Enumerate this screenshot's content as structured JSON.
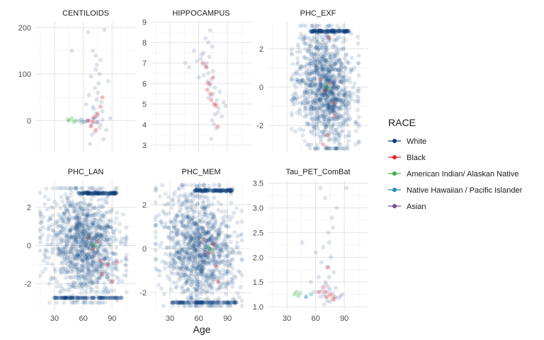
{
  "chart_data": {
    "type": "scatter",
    "xlabel": "Age",
    "x_ticks": [
      30,
      60,
      90
    ],
    "xlim": [
      10,
      115
    ],
    "grid": true,
    "legend_position": "right",
    "legend": {
      "title": "RACE",
      "entries": [
        {
          "name": "White",
          "color": "#0b3b7a"
        },
        {
          "name": "Black",
          "color": "#e3242b"
        },
        {
          "name": "American Indian/ Alaskan Native",
          "color": "#3dae49"
        },
        {
          "name": "Native Hawaiian / Pacific Islander",
          "color": "#1f8eb0"
        },
        {
          "name": "Asian",
          "color": "#7a4a9a"
        }
      ]
    },
    "panels": [
      {
        "title": "CENTILOIDS",
        "ylim": [
          -68,
          212
        ],
        "y_ticks": [
          0,
          100,
          200
        ],
        "y_tick_labels": [
          "0",
          "100",
          "200"
        ],
        "points": [
          [
            70,
            -5,
            0
          ],
          [
            72,
            5,
            0
          ],
          [
            68,
            -10,
            0
          ],
          [
            75,
            10,
            0
          ],
          [
            65,
            0,
            0
          ],
          [
            78,
            -8,
            0
          ],
          [
            80,
            2,
            0
          ],
          [
            62,
            -3,
            0
          ],
          [
            73,
            15,
            0
          ],
          [
            77,
            -15,
            0
          ],
          [
            70,
            30,
            0
          ],
          [
            74,
            45,
            0
          ],
          [
            72,
            70,
            0
          ],
          [
            76,
            80,
            0
          ],
          [
            68,
            95,
            0
          ],
          [
            73,
            110,
            0
          ],
          [
            78,
            130,
            0
          ],
          [
            70,
            150,
            0
          ],
          [
            65,
            190,
            0
          ],
          [
            82,
            195,
            0
          ],
          [
            75,
            60,
            0
          ],
          [
            71,
            25,
            0
          ],
          [
            84,
            -20,
            0
          ],
          [
            58,
            -5,
            0
          ],
          [
            88,
            5,
            0
          ],
          [
            79,
            40,
            0
          ],
          [
            66,
            55,
            0
          ],
          [
            74,
            120,
            0
          ],
          [
            69,
            -30,
            0
          ],
          [
            81,
            -40,
            0
          ],
          [
            55,
            0,
            0
          ],
          [
            48,
            150,
            0
          ],
          [
            67,
            -50,
            0
          ],
          [
            77,
            100,
            0
          ],
          [
            72,
            -25,
            0
          ],
          [
            86,
            85,
            0
          ],
          [
            63,
            35,
            0
          ],
          [
            73,
            140,
            0
          ],
          [
            80,
            20,
            0
          ],
          [
            75,
            -2,
            0
          ],
          [
            70,
            -2,
            1
          ],
          [
            72,
            8,
            1
          ],
          [
            75,
            15,
            1
          ],
          [
            68,
            -12,
            1
          ],
          [
            78,
            30,
            1
          ],
          [
            64,
            0,
            1
          ],
          [
            73,
            -20,
            1
          ],
          [
            80,
            50,
            1
          ],
          [
            45,
            0,
            2
          ],
          [
            48,
            5,
            2
          ],
          [
            50,
            -3,
            2
          ],
          [
            44,
            2,
            2
          ],
          [
            52,
            0,
            2
          ],
          [
            58,
            2,
            3
          ],
          [
            60,
            -2,
            3
          ],
          [
            66,
            0,
            4
          ],
          [
            70,
            5,
            4
          ],
          [
            74,
            -4,
            4
          ]
        ]
      },
      {
        "title": "HIPPOCAMPUS",
        "ylim": [
          2.65,
          9.0
        ],
        "y_ticks": [
          3,
          4,
          5,
          6,
          7,
          8,
          9
        ],
        "y_tick_labels": [
          "3",
          "4",
          "5",
          "6",
          "7",
          "8",
          "9"
        ],
        "points": [
          [
            70,
            6.5,
            0
          ],
          [
            72,
            6.0,
            0
          ],
          [
            68,
            7.0,
            0
          ],
          [
            75,
            5.5,
            0
          ],
          [
            65,
            7.5,
            0
          ],
          [
            78,
            5.0,
            0
          ],
          [
            80,
            4.6,
            0
          ],
          [
            62,
            7.2,
            0
          ],
          [
            73,
            6.2,
            0
          ],
          [
            77,
            5.8,
            0
          ],
          [
            70,
            8.0,
            0
          ],
          [
            74,
            7.8,
            0
          ],
          [
            72,
            8.6,
            0
          ],
          [
            76,
            4.0,
            0
          ],
          [
            68,
            6.8,
            0
          ],
          [
            73,
            3.3,
            0
          ],
          [
            78,
            3.8,
            0
          ],
          [
            70,
            5.3,
            0
          ],
          [
            65,
            6.4,
            0
          ],
          [
            82,
            5.6,
            0
          ],
          [
            75,
            6.6,
            0
          ],
          [
            71,
            7.3,
            0
          ],
          [
            84,
            4.4,
            0
          ],
          [
            58,
            7.1,
            0
          ],
          [
            88,
            4.9,
            0
          ],
          [
            79,
            5.2,
            0
          ],
          [
            66,
            6.9,
            0
          ],
          [
            74,
            4.2,
            0
          ],
          [
            69,
            6.1,
            0
          ],
          [
            81,
            4.8,
            0
          ],
          [
            55,
            7.6,
            0
          ],
          [
            50,
            6.8,
            0
          ],
          [
            67,
            8.2,
            0
          ],
          [
            77,
            4.5,
            0
          ],
          [
            72,
            5.9,
            0
          ],
          [
            86,
            5.1,
            0
          ],
          [
            63,
            7.4,
            0
          ],
          [
            73,
            5.4,
            0
          ],
          [
            60,
            6.3,
            0
          ],
          [
            46,
            7.0,
            0
          ],
          [
            70,
            6.0,
            1
          ],
          [
            72,
            5.5,
            1
          ],
          [
            75,
            6.3,
            1
          ],
          [
            68,
            6.8,
            1
          ],
          [
            78,
            4.9,
            1
          ],
          [
            64,
            7.0,
            1
          ],
          [
            73,
            5.2,
            1
          ],
          [
            80,
            3.9,
            1
          ],
          [
            69,
            5.7,
            1
          ],
          [
            76,
            5.0,
            1
          ]
        ]
      },
      {
        "title": "PHC_EXF",
        "ylim": [
          -3.4,
          3.4
        ],
        "y_ticks": [
          -2,
          0,
          2
        ],
        "y_tick_labels": [
          "-2",
          "0",
          "2"
        ],
        "cloud": {
          "n": 1100,
          "seed": 11,
          "x": [
            35,
            105
          ],
          "y": [
            -3.2,
            3.2
          ],
          "white_band": true
        },
        "points": [
          [
            72,
            0.0,
            0
          ],
          [
            74,
            0.3,
            0
          ],
          [
            70,
            -0.3,
            0
          ],
          [
            76,
            0.5,
            0
          ],
          [
            68,
            -0.4,
            0
          ],
          [
            70,
            -0.2,
            1
          ],
          [
            75,
            0.2,
            1
          ],
          [
            78,
            -0.8,
            1
          ],
          [
            65,
            0.4,
            1
          ],
          [
            80,
            -1.5,
            1
          ],
          [
            72,
            -2.5,
            1
          ],
          [
            74,
            2.6,
            1
          ],
          [
            68,
            -3.0,
            1
          ],
          [
            72,
            0.0,
            2
          ],
          [
            70,
            0.1,
            2
          ],
          [
            74,
            -0.1,
            2
          ]
        ]
      },
      {
        "title": "PHC_LAN",
        "ylim": [
          -3.4,
          3.4
        ],
        "y_ticks": [
          -2,
          0,
          2
        ],
        "y_tick_labels": [
          "-2",
          "0",
          "2"
        ],
        "cloud": {
          "n": 1100,
          "seed": 23,
          "x": [
            15,
            105
          ],
          "y": [
            -3.0,
            3.0
          ],
          "white_band": true,
          "line_bottom": -2.75
        },
        "points": [
          [
            72,
            0.0,
            0
          ],
          [
            74,
            0.3,
            0
          ],
          [
            70,
            -0.3,
            0
          ],
          [
            70,
            -0.2,
            1
          ],
          [
            75,
            0.2,
            1
          ],
          [
            78,
            -0.8,
            1
          ],
          [
            65,
            0.4,
            1
          ],
          [
            80,
            -1.5,
            1
          ],
          [
            85,
            -1.0,
            1
          ],
          [
            90,
            -1.9,
            1
          ],
          [
            95,
            -0.9,
            1
          ],
          [
            72,
            0.0,
            2
          ],
          [
            70,
            0.1,
            2
          ],
          [
            74,
            -0.1,
            2
          ]
        ]
      },
      {
        "title": "PHC_MEM",
        "ylim": [
          -2.8,
          3.1
        ],
        "y_ticks": [
          -2,
          0,
          2
        ],
        "y_tick_labels": [
          "-2",
          "0",
          "2"
        ],
        "cloud": {
          "n": 1100,
          "seed": 37,
          "x": [
            15,
            105
          ],
          "y": [
            -2.6,
            2.9
          ],
          "white_band": true,
          "line_bottom": -2.45
        },
        "points": [
          [
            72,
            0.0,
            0
          ],
          [
            74,
            0.3,
            0
          ],
          [
            70,
            -0.3,
            0
          ],
          [
            70,
            -0.2,
            1
          ],
          [
            75,
            0.2,
            1
          ],
          [
            78,
            -0.8,
            1
          ],
          [
            65,
            0.4,
            1
          ],
          [
            80,
            -1.5,
            1
          ],
          [
            72,
            0.0,
            2
          ],
          [
            70,
            0.1,
            2
          ],
          [
            74,
            -0.1,
            2
          ]
        ]
      },
      {
        "title": "Tau_PET_ComBat",
        "ylim": [
          0.93,
          3.55
        ],
        "y_ticks": [
          1.0,
          1.5,
          2.0,
          2.5,
          3.0,
          3.5
        ],
        "y_tick_labels": [
          "1.0",
          "1.5",
          "2.0",
          "2.5",
          "3.0",
          "3.5"
        ],
        "points": [
          [
            70,
            1.2,
            0
          ],
          [
            72,
            1.3,
            0
          ],
          [
            68,
            1.25,
            0
          ],
          [
            75,
            1.35,
            0
          ],
          [
            65,
            1.2,
            0
          ],
          [
            78,
            1.28,
            0
          ],
          [
            80,
            1.15,
            0
          ],
          [
            62,
            1.3,
            0
          ],
          [
            73,
            1.4,
            0
          ],
          [
            77,
            1.22,
            0
          ],
          [
            70,
            1.5,
            0
          ],
          [
            74,
            1.6,
            0
          ],
          [
            72,
            1.8,
            0
          ],
          [
            76,
            2.0,
            0
          ],
          [
            68,
            2.2,
            0
          ],
          [
            73,
            2.5,
            0
          ],
          [
            78,
            2.6,
            0
          ],
          [
            70,
            3.2,
            0
          ],
          [
            65,
            3.4,
            0
          ],
          [
            82,
            3.0,
            0
          ],
          [
            75,
            1.1,
            0
          ],
          [
            71,
            1.45,
            0
          ],
          [
            84,
            1.18,
            0
          ],
          [
            58,
            1.3,
            0
          ],
          [
            88,
            1.25,
            0
          ],
          [
            79,
            1.7,
            0
          ],
          [
            66,
            1.9,
            0
          ],
          [
            74,
            2.3,
            0
          ],
          [
            69,
            1.05,
            0
          ],
          [
            81,
            1.38,
            0
          ],
          [
            55,
            1.5,
            0
          ],
          [
            50,
            1.2,
            0
          ],
          [
            67,
            1.33,
            0
          ],
          [
            77,
            2.8,
            0
          ],
          [
            72,
            1.12,
            0
          ],
          [
            86,
            1.22,
            0
          ],
          [
            63,
            1.6,
            0
          ],
          [
            92,
            3.4,
            0
          ],
          [
            60,
            2.1,
            0
          ],
          [
            46,
            2.3,
            0
          ],
          [
            70,
            1.3,
            1
          ],
          [
            72,
            1.2,
            1
          ],
          [
            75,
            1.25,
            1
          ],
          [
            68,
            1.4,
            1
          ],
          [
            78,
            1.15,
            1
          ],
          [
            64,
            1.3,
            1
          ],
          [
            73,
            1.8,
            1
          ],
          [
            80,
            1.2,
            1
          ],
          [
            38,
            1.25,
            2
          ],
          [
            40,
            1.3,
            2
          ],
          [
            42,
            1.22,
            2
          ],
          [
            44,
            1.28,
            2
          ],
          [
            50,
            1.2,
            3
          ],
          [
            55,
            1.25,
            3
          ]
        ]
      }
    ]
  }
}
